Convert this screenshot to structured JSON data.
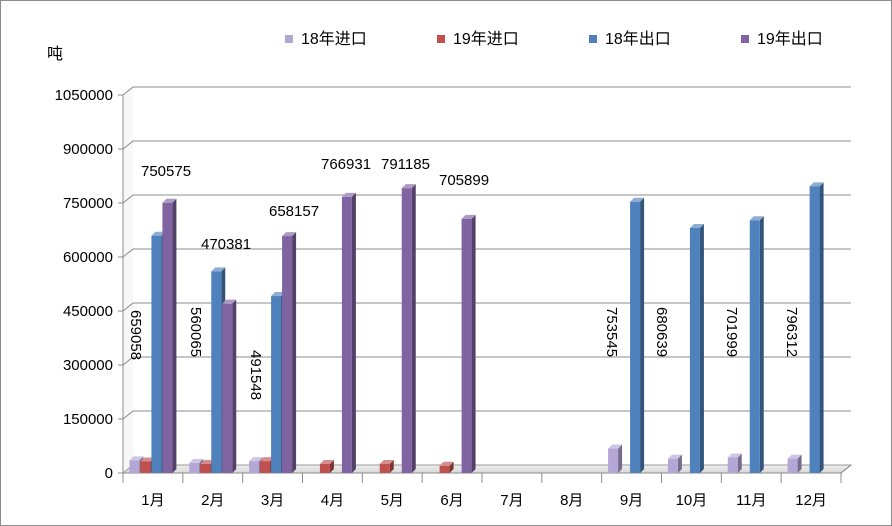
{
  "chart_data": {
    "type": "bar",
    "title": "",
    "xlabel": "",
    "ylabel": "吨",
    "ylim": [
      0,
      1050000
    ],
    "y_ticks": [
      "0",
      "150000",
      "300000",
      "450000",
      "600000",
      "750000",
      "900000",
      "1050000"
    ],
    "grid": "horizontal",
    "legend_position": "top",
    "categories": [
      "1月",
      "2月",
      "3月",
      "4月",
      "5月",
      "6月",
      "7月",
      "8月",
      "9月",
      "10月",
      "11月",
      "12月"
    ],
    "series": [
      {
        "name": "18年进口",
        "color": "#b4a7d6",
        "values": [
          35000,
          28000,
          33000,
          null,
          null,
          null,
          null,
          null,
          68000,
          40000,
          43000,
          40000
        ],
        "labels": [
          null,
          null,
          null,
          null,
          null,
          null,
          null,
          null,
          null,
          null,
          null,
          null
        ]
      },
      {
        "name": "19年进口",
        "color": "#c0504d",
        "values": [
          32000,
          25000,
          33000,
          25000,
          25000,
          20000,
          null,
          null,
          null,
          null,
          null,
          null
        ],
        "labels": [
          null,
          null,
          null,
          null,
          null,
          null,
          null,
          null,
          null,
          null,
          null,
          null
        ]
      },
      {
        "name": "18年出口",
        "color": "#4f81bd",
        "values": [
          659058,
          560065,
          491548,
          null,
          null,
          null,
          null,
          null,
          753545,
          680639,
          701999,
          796312
        ],
        "labels": [
          "659058",
          "560065",
          "491548",
          null,
          null,
          null,
          null,
          null,
          "753545",
          "680639",
          "701999",
          "796312"
        ]
      },
      {
        "name": "19年出口",
        "color": "#8064a2",
        "values": [
          750575,
          470381,
          658157,
          766931,
          791185,
          705899,
          null,
          null,
          null,
          null,
          null,
          null
        ],
        "labels": [
          "750575",
          "470381",
          "658157",
          "766931",
          "791185",
          "705899",
          null,
          null,
          null,
          null,
          null,
          null
        ]
      }
    ]
  }
}
